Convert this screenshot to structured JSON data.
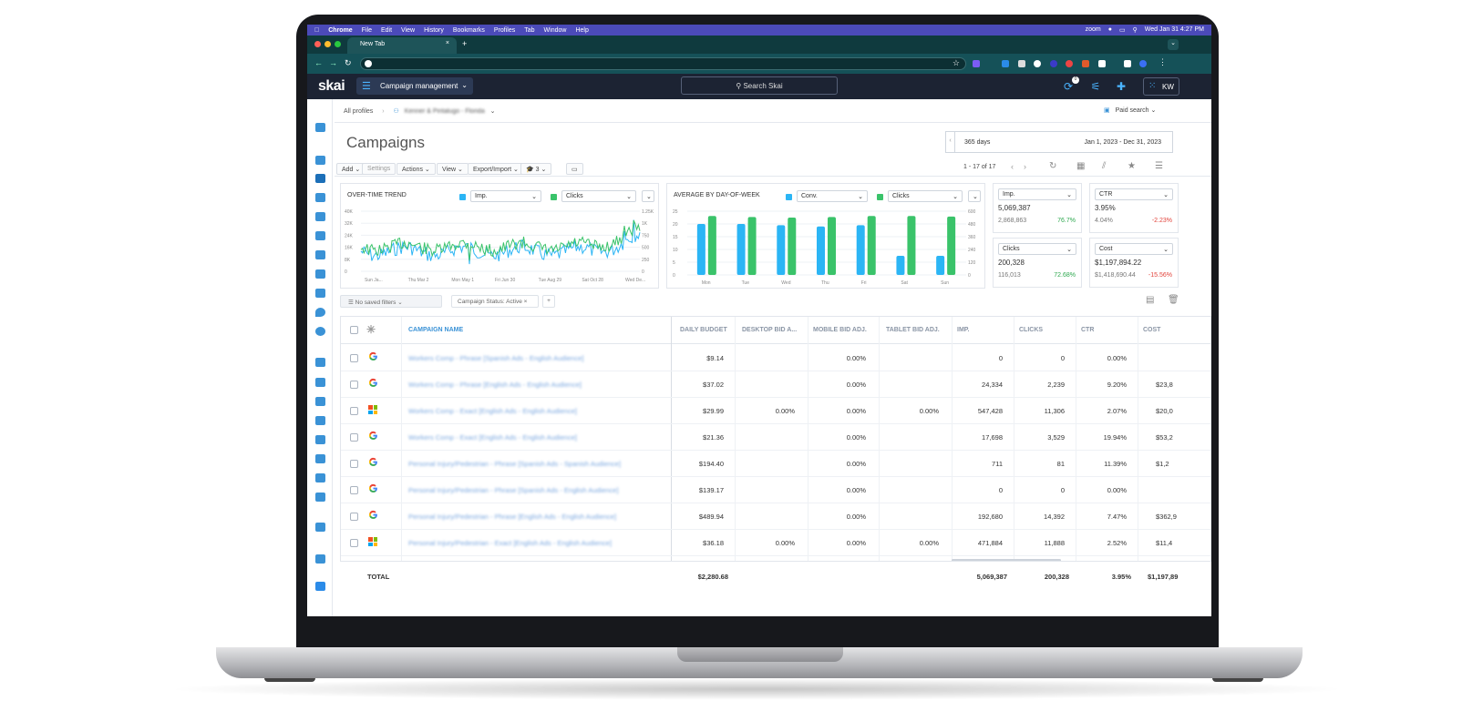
{
  "mac_menu": {
    "app": "Chrome",
    "items": [
      "File",
      "Edit",
      "View",
      "History",
      "Bookmarks",
      "Profiles",
      "Tab",
      "Window",
      "Help"
    ],
    "clock": "Wed Jan 31  4:27 PM",
    "zoom": "zoom"
  },
  "browser": {
    "tab_title": "New Tab",
    "new_tab": "+"
  },
  "app": {
    "logo": "skai",
    "section": "Campaign management",
    "search_placeholder": "Search Skai",
    "user_initials": "KW",
    "notification_count": "0"
  },
  "breadcrumb": {
    "root": "All profiles",
    "profile": "Kenner & Pintalugo - Florida",
    "channel": "Paid search"
  },
  "page": {
    "title": "Campaigns",
    "date_range_label": "365 days",
    "date_range": "Jan 1, 2023 - Dec 31, 2023"
  },
  "toolbar": {
    "add": "Add",
    "settings": "Settings",
    "actions": "Actions",
    "view": "View",
    "export": "Export/Import",
    "count": "3",
    "pagination": "1 - 17 of 17"
  },
  "widgets": {
    "trend": {
      "title": "OVER-TIME TREND",
      "metric1": "Imp.",
      "metric2": "Clicks",
      "y_left": [
        "40K",
        "32K",
        "24K",
        "16K",
        "8K",
        "0"
      ],
      "y_right": [
        "1.25K",
        "1K",
        "750",
        "500",
        "250",
        "0"
      ],
      "x": [
        "Sun Ja...",
        "Thu Mar 2",
        "Mon May 1",
        "Fri Jun 30",
        "Tue Aug 29",
        "Sat Oct 28",
        "Wed De..."
      ],
      "color1": "#2bb5f5",
      "color2": "#3ac36a"
    },
    "dow": {
      "title": "AVERAGE BY DAY-OF-WEEK",
      "metric1": "Conv.",
      "metric2": "Clicks",
      "y_left": [
        "25",
        "20",
        "15",
        "10",
        "5",
        "0"
      ],
      "y_right": [
        "600",
        "480",
        "360",
        "240",
        "120",
        "0"
      ],
      "days": [
        "Mon",
        "Tue",
        "Wed",
        "Thu",
        "Fri",
        "Sat",
        "Sun"
      ]
    },
    "kpis": [
      {
        "metric": "Imp.",
        "value": "5,069,387",
        "prev": "2,868,863",
        "change": "76.7%",
        "positive": true
      },
      {
        "metric": "CTR",
        "value": "3.95%",
        "prev": "4.04%",
        "change": "-2.23%",
        "positive": false
      },
      {
        "metric": "Clicks",
        "value": "200,328",
        "prev": "116,013",
        "change": "72.68%",
        "positive": true
      },
      {
        "metric": "Cost",
        "value": "$1,197,894.22",
        "prev": "$1,418,690.44",
        "change": "-15.56%",
        "positive": false
      }
    ]
  },
  "filters": {
    "saved": "No saved filters",
    "active": "Campaign Status: Active"
  },
  "table": {
    "headers": [
      "CAMPAIGN NAME",
      "DAILY BUDGET",
      "DESKTOP BID A...",
      "MOBILE BID ADJ.",
      "TABLET BID ADJ.",
      "IMP.",
      "CLICKS",
      "CTR",
      "COST"
    ],
    "rows": [
      {
        "engine": "google",
        "name": "Workers Comp - Phrase [Spanish Ads - English Audience]",
        "budget": "$9.14",
        "desktop": "",
        "mobile": "0.00%",
        "tablet": "",
        "imp": "0",
        "clicks": "0",
        "ctr": "0.00%",
        "cost": ""
      },
      {
        "engine": "google",
        "name": "Workers Comp - Phrase [English Ads - English Audience]",
        "budget": "$37.02",
        "desktop": "",
        "mobile": "0.00%",
        "tablet": "",
        "imp": "24,334",
        "clicks": "2,239",
        "ctr": "9.20%",
        "cost": "$23,8"
      },
      {
        "engine": "microsoft",
        "name": "Workers Comp - Exact [English Ads - English Audience]",
        "budget": "$29.99",
        "desktop": "0.00%",
        "mobile": "0.00%",
        "tablet": "0.00%",
        "imp": "547,428",
        "clicks": "11,306",
        "ctr": "2.07%",
        "cost": "$20,0"
      },
      {
        "engine": "google",
        "name": "Workers Comp - Exact [English Ads - English Audience]",
        "budget": "$21.36",
        "desktop": "",
        "mobile": "0.00%",
        "tablet": "",
        "imp": "17,698",
        "clicks": "3,529",
        "ctr": "19.94%",
        "cost": "$53,2"
      },
      {
        "engine": "google",
        "name": "Personal Injury/Pedestrian - Phrase [Spanish Ads - Spanish Audience]",
        "budget": "$194.40",
        "desktop": "",
        "mobile": "0.00%",
        "tablet": "",
        "imp": "711",
        "clicks": "81",
        "ctr": "11.39%",
        "cost": "$1,2"
      },
      {
        "engine": "google",
        "name": "Personal Injury/Pedestrian - Phrase [Spanish Ads - English Audience]",
        "budget": "$139.17",
        "desktop": "",
        "mobile": "0.00%",
        "tablet": "",
        "imp": "0",
        "clicks": "0",
        "ctr": "0.00%",
        "cost": ""
      },
      {
        "engine": "google",
        "name": "Personal Injury/Pedestrian - Phrase [English Ads - English Audience]",
        "budget": "$489.94",
        "desktop": "",
        "mobile": "0.00%",
        "tablet": "",
        "imp": "192,680",
        "clicks": "14,392",
        "ctr": "7.47%",
        "cost": "$362,9"
      },
      {
        "engine": "microsoft",
        "name": "Personal Injury/Pedestrian - Exact [English Ads - English Audience]",
        "budget": "$36.18",
        "desktop": "0.00%",
        "mobile": "0.00%",
        "tablet": "0.00%",
        "imp": "471,884",
        "clicks": "11,888",
        "ctr": "2.52%",
        "cost": "$11,4"
      }
    ],
    "total": {
      "label": "TOTAL",
      "budget": "$2,280.68",
      "imp": "5,069,387",
      "clicks": "200,328",
      "ctr": "3.95%",
      "cost": "$1,197,89"
    }
  }
}
